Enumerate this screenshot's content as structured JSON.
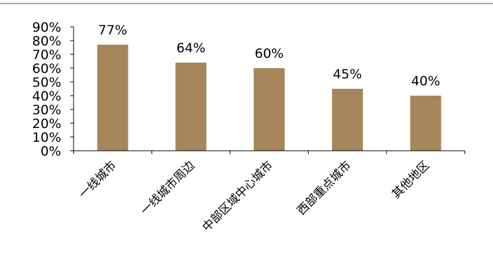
{
  "chart_data": {
    "type": "bar",
    "categories": [
      "一线城市",
      "一线城市周边",
      "中部区域中心城市",
      "西部重点城市",
      "其他地区"
    ],
    "values": [
      77,
      64,
      60,
      45,
      40
    ],
    "data_labels": [
      "77%",
      "64%",
      "60%",
      "45%",
      "40%"
    ],
    "yticks": [
      "0%",
      "10%",
      "20%",
      "30%",
      "40%",
      "50%",
      "60%",
      "70%",
      "80%",
      "90%"
    ],
    "ylim": [
      0,
      90
    ],
    "unit": "%",
    "grid": false,
    "legend": "none",
    "colors": {
      "bar": "#A8865B",
      "top_rule": "#A8865B",
      "axis": "#000000"
    }
  }
}
